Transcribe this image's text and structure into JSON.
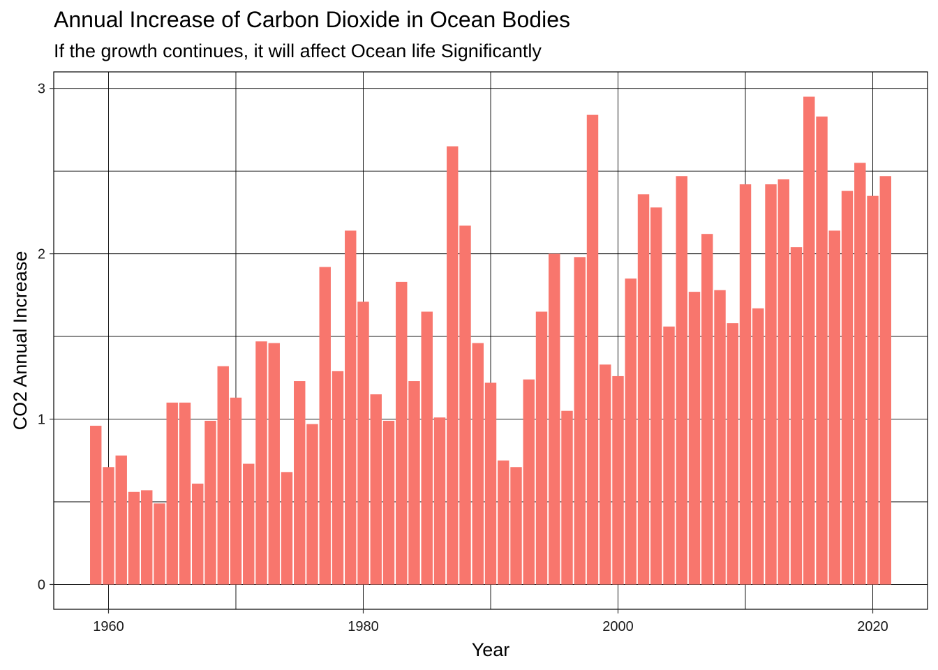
{
  "chart_data": {
    "type": "bar",
    "title": "Annual Increase of Carbon Dioxide in Ocean Bodies",
    "subtitle": "If the growth continues, it will affect Ocean life Significantly",
    "xlabel": "Year",
    "ylabel": "CO2 Annual Increase",
    "xlim": [
      1955.7,
      2024.3
    ],
    "ylim": [
      -0.15,
      3.1
    ],
    "x_ticks": [
      1960,
      1980,
      2000,
      2020
    ],
    "x_minor_ticks": [
      1970,
      1990,
      2010
    ],
    "y_ticks": [
      0,
      1,
      2,
      3
    ],
    "y_minor_ticks": [
      0.5,
      1.5,
      2.5
    ],
    "grid": true,
    "legend": "none",
    "bar_color": "#F8766D",
    "x": [
      1959,
      1960,
      1961,
      1962,
      1963,
      1964,
      1965,
      1966,
      1967,
      1968,
      1969,
      1970,
      1971,
      1972,
      1973,
      1974,
      1975,
      1976,
      1977,
      1978,
      1979,
      1980,
      1981,
      1982,
      1983,
      1984,
      1985,
      1986,
      1987,
      1988,
      1989,
      1990,
      1991,
      1992,
      1993,
      1994,
      1995,
      1996,
      1997,
      1998,
      1999,
      2000,
      2001,
      2002,
      2003,
      2004,
      2005,
      2006,
      2007,
      2008,
      2009,
      2010,
      2011,
      2012,
      2013,
      2014,
      2015,
      2016,
      2017,
      2018,
      2019,
      2020,
      2021
    ],
    "values": [
      0.96,
      0.71,
      0.78,
      0.56,
      0.57,
      0.49,
      1.1,
      1.1,
      0.61,
      0.99,
      1.32,
      1.13,
      0.73,
      1.47,
      1.46,
      0.68,
      1.23,
      0.97,
      1.92,
      1.29,
      2.14,
      1.71,
      1.15,
      0.99,
      1.83,
      1.23,
      1.65,
      1.01,
      2.65,
      2.17,
      1.46,
      1.22,
      0.75,
      0.71,
      1.24,
      1.65,
      2.0,
      1.05,
      1.98,
      2.84,
      1.33,
      1.26,
      1.85,
      2.36,
      2.28,
      1.56,
      2.47,
      1.77,
      2.12,
      1.78,
      1.58,
      2.42,
      1.67,
      2.42,
      2.45,
      2.04,
      2.95,
      2.83,
      2.14,
      2.38,
      2.55,
      2.35,
      2.47
    ]
  }
}
